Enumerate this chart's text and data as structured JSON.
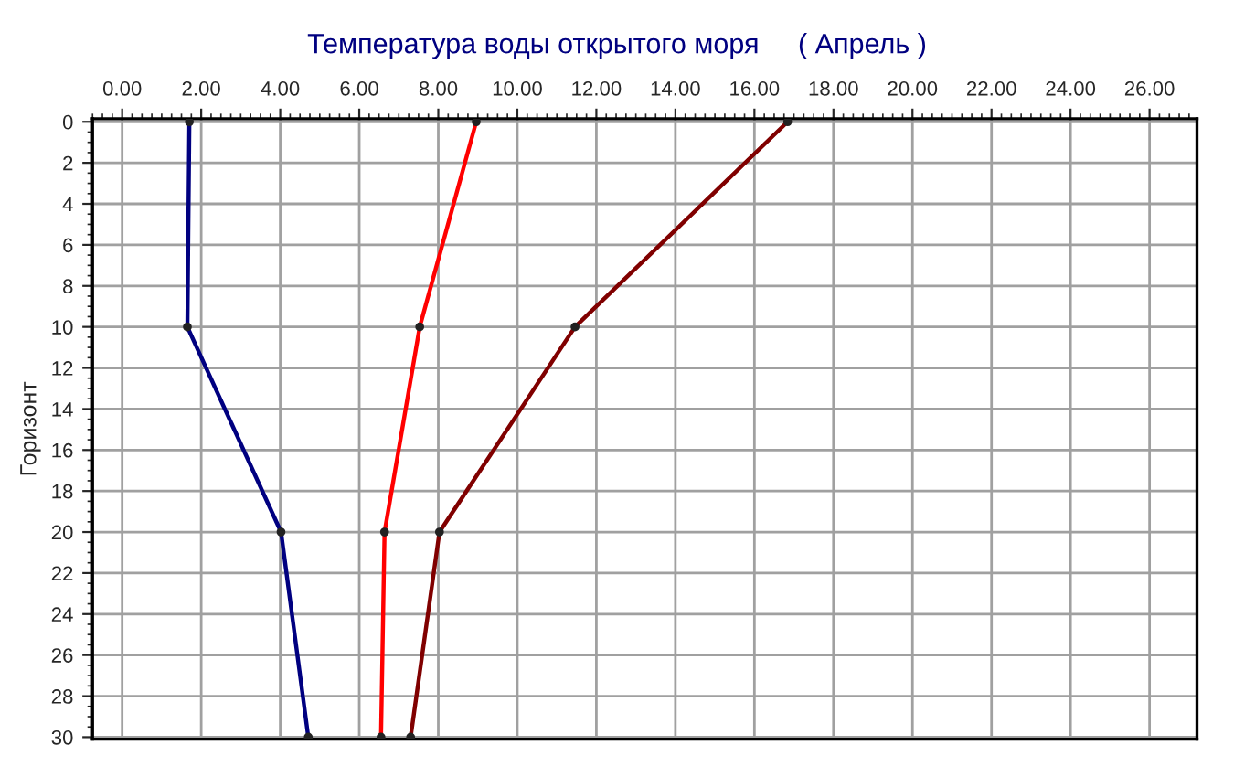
{
  "chart_data": {
    "type": "line",
    "title": "Температура воды открытого моря     ( Апрель )",
    "ylabel": "Горизонт",
    "xlim": [
      -0.75,
      27.2
    ],
    "xticks": [
      {
        "value": 0,
        "label": "0.00"
      },
      {
        "value": 2,
        "label": "2.00"
      },
      {
        "value": 4,
        "label": "4.00"
      },
      {
        "value": 6,
        "label": "6.00"
      },
      {
        "value": 8,
        "label": "8.00"
      },
      {
        "value": 10,
        "label": "10.00"
      },
      {
        "value": 12,
        "label": "12.00"
      },
      {
        "value": 14,
        "label": "14.00"
      },
      {
        "value": 16,
        "label": "16.00"
      },
      {
        "value": 18,
        "label": "18.00"
      },
      {
        "value": 20,
        "label": "20.00"
      },
      {
        "value": 22,
        "label": "22.00"
      },
      {
        "value": 24,
        "label": "24.00"
      },
      {
        "value": 26,
        "label": "26.00"
      }
    ],
    "ylim": [
      30.1,
      -0.15
    ],
    "yticks": [
      0,
      2,
      4,
      6,
      8,
      10,
      12,
      14,
      16,
      18,
      20,
      22,
      24,
      26,
      28,
      30
    ],
    "grid": true,
    "marker": "circle",
    "line_style": "solid",
    "series": [
      {
        "color": "#000080",
        "x": [
          1.7,
          1.65,
          4.02,
          4.71
        ],
        "values": [
          0,
          10,
          20,
          30
        ]
      },
      {
        "color": "#ff0000",
        "x": [
          8.96,
          7.53,
          6.64,
          6.55
        ],
        "values": [
          0,
          10,
          20,
          30
        ]
      },
      {
        "color": "#800000",
        "x": [
          16.84,
          11.46,
          8.03,
          7.3
        ],
        "values": [
          0,
          10,
          20,
          30
        ]
      }
    ]
  }
}
